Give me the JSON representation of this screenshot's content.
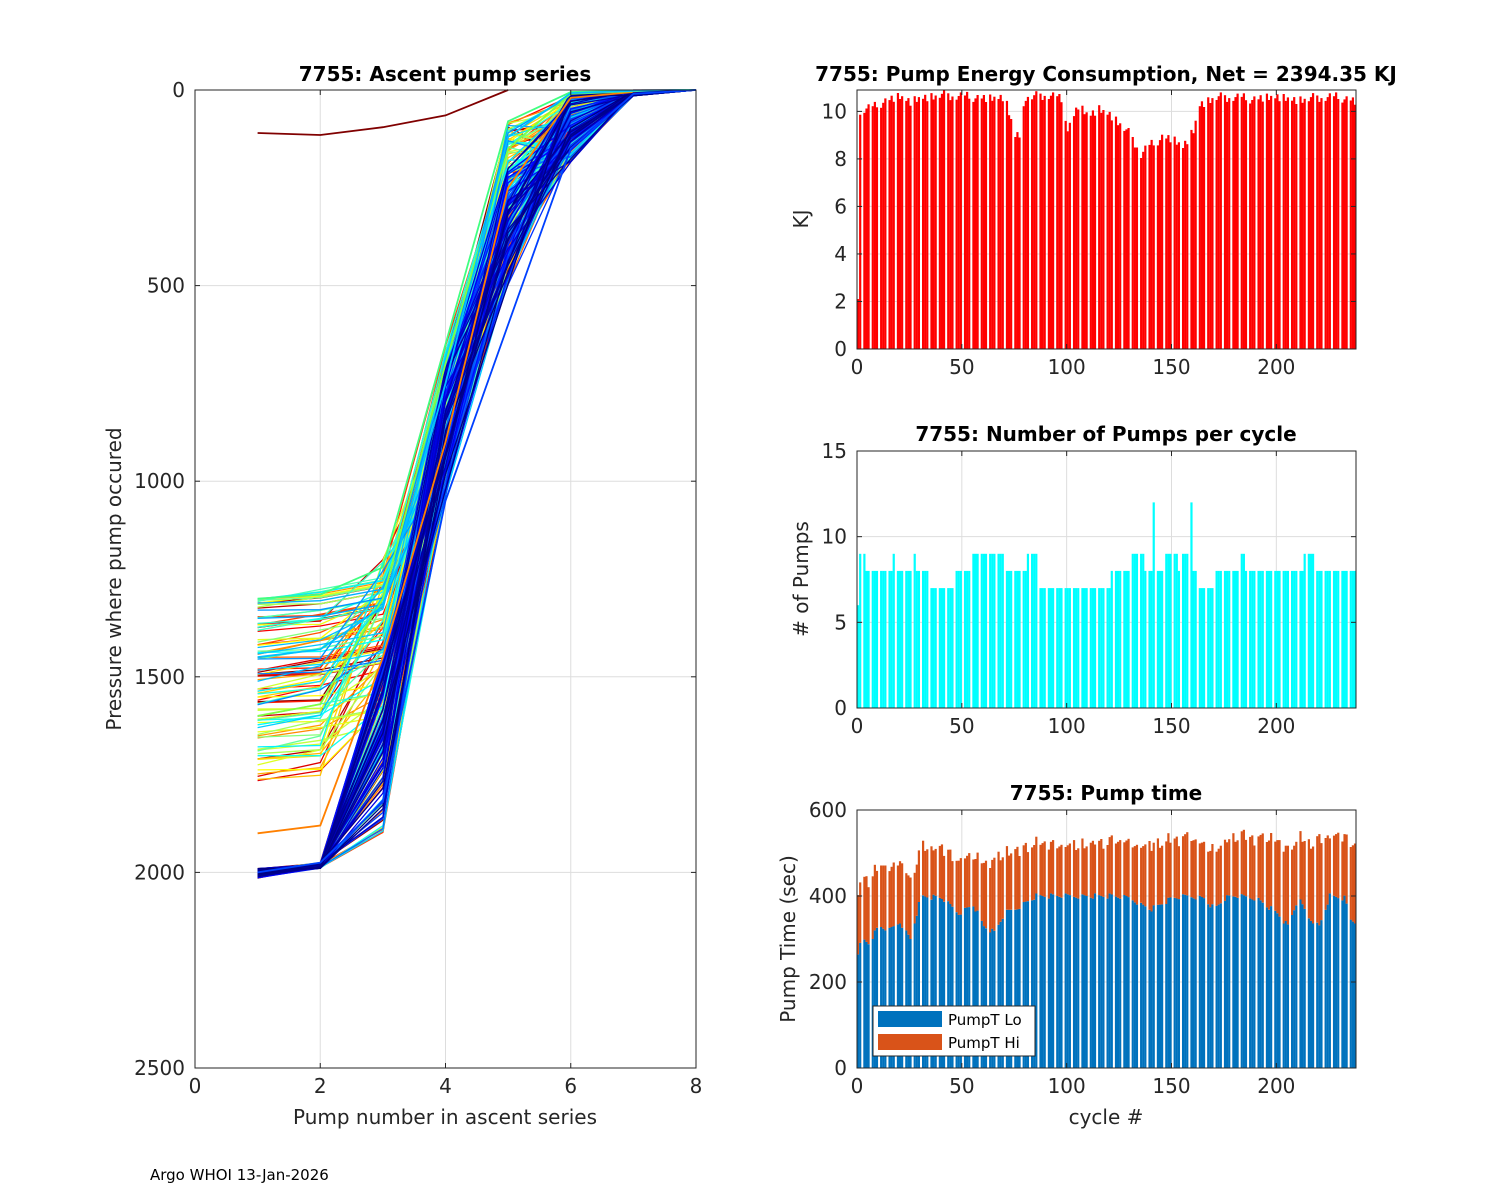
{
  "footer": "Argo WHOI 13-Jan-2026",
  "colors": {
    "energy_bar": "#ff0000",
    "pumps_bar": "#00ffff",
    "pumpt_lo": "#0072bd",
    "pumpt_hi": "#d95319",
    "grid": "#dddddd",
    "axis": "#262626"
  },
  "chart_data": [
    {
      "id": "ascent",
      "type": "line",
      "title": "7755: Ascent pump series",
      "xlabel": "Pump number in ascent series",
      "ylabel": "Pressure where pump occured",
      "xlim": [
        0,
        8
      ],
      "ylim": [
        0,
        2500
      ],
      "y_reversed": true,
      "xticks": [
        0,
        2,
        4,
        6,
        8
      ],
      "yticks": [
        0,
        500,
        1000,
        1500,
        2000,
        2500
      ],
      "grid": true,
      "colormap": "jet",
      "n_profiles": 238,
      "x": [
        1,
        2,
        3,
        4,
        5,
        6,
        7,
        8
      ],
      "representative_series": [
        {
          "name": "cycle 0",
          "values": [
            110,
            115,
            95,
            65,
            0,
            null,
            null,
            null
          ],
          "color": "#800000"
        },
        {
          "name": "early deep",
          "values": [
            1900,
            1880,
            1450,
            900,
            250,
            20,
            5,
            0
          ],
          "color": "#ff8000"
        },
        {
          "name": "mid shallow",
          "values": [
            1300,
            1290,
            1220,
            650,
            80,
            5,
            2,
            0
          ],
          "color": "#40ff80"
        },
        {
          "name": "mid",
          "values": [
            1600,
            1570,
            1300,
            700,
            150,
            10,
            3,
            0
          ],
          "color": "#80ff40"
        },
        {
          "name": "late",
          "values": [
            1450,
            1430,
            1320,
            750,
            120,
            8,
            2,
            0
          ],
          "color": "#00c0ff"
        },
        {
          "name": "late deep",
          "values": [
            2010,
            1985,
            1500,
            930,
            380,
            120,
            8,
            0
          ],
          "color": "#00008f"
        },
        {
          "name": "deep alt",
          "values": [
            2000,
            1975,
            1820,
            1050,
            600,
            150,
            10,
            0
          ],
          "color": "#0040ff"
        }
      ]
    },
    {
      "id": "energy",
      "type": "bar",
      "title": "7755: Pump Energy Consumption,  Net = 2394.35 KJ",
      "xlabel": "",
      "ylabel": "KJ",
      "xlim": [
        0,
        238
      ],
      "ylim": [
        0,
        10.9
      ],
      "xticks": [
        0,
        50,
        100,
        150,
        200
      ],
      "yticks": [
        0,
        2,
        4,
        6,
        8,
        10
      ],
      "grid": true,
      "profile_points": [
        [
          0,
          2.1
        ],
        [
          1,
          9.9
        ],
        [
          3,
          10.1
        ],
        [
          8,
          10.2
        ],
        [
          12,
          10.4
        ],
        [
          20,
          10.6
        ],
        [
          25,
          10.4
        ],
        [
          30,
          10.6
        ],
        [
          40,
          10.7
        ],
        [
          55,
          10.6
        ],
        [
          62,
          10.5
        ],
        [
          70,
          10.6
        ],
        [
          75,
          9.0
        ],
        [
          77,
          9.1
        ],
        [
          80,
          10.6
        ],
        [
          90,
          10.7
        ],
        [
          95,
          10.6
        ],
        [
          98,
          10.4
        ],
        [
          100,
          9.2
        ],
        [
          103,
          9.8
        ],
        [
          105,
          10.2
        ],
        [
          110,
          9.8
        ],
        [
          115,
          10.1
        ],
        [
          120,
          9.9
        ],
        [
          125,
          9.5
        ],
        [
          130,
          9.0
        ],
        [
          135,
          8.2
        ],
        [
          138,
          8.5
        ],
        [
          142,
          8.7
        ],
        [
          145,
          8.9
        ],
        [
          150,
          8.8
        ],
        [
          155,
          8.5
        ],
        [
          160,
          9.2
        ],
        [
          163,
          10.3
        ],
        [
          170,
          10.6
        ],
        [
          180,
          10.6
        ],
        [
          190,
          10.5
        ],
        [
          200,
          10.6
        ],
        [
          210,
          10.5
        ],
        [
          220,
          10.6
        ],
        [
          230,
          10.6
        ],
        [
          237,
          10.4
        ]
      ]
    },
    {
      "id": "pumps",
      "type": "bar",
      "title": "7755: Number of Pumps per cycle",
      "xlabel": "",
      "ylabel": "# of Pumps",
      "xlim": [
        0,
        238
      ],
      "ylim": [
        0,
        15
      ],
      "xticks": [
        0,
        50,
        100,
        150,
        200
      ],
      "yticks": [
        0,
        5,
        10,
        15
      ],
      "grid": true,
      "segments": [
        [
          0,
          0,
          6
        ],
        [
          1,
          3,
          9
        ],
        [
          4,
          16,
          8
        ],
        [
          16,
          17,
          9
        ],
        [
          17,
          26,
          8
        ],
        [
          26,
          27,
          9
        ],
        [
          27,
          33,
          8
        ],
        [
          33,
          46,
          7
        ],
        [
          46,
          53,
          8
        ],
        [
          53,
          70,
          9
        ],
        [
          70,
          80,
          8
        ],
        [
          80,
          85,
          9
        ],
        [
          85,
          105,
          7
        ],
        [
          105,
          120,
          7
        ],
        [
          120,
          130,
          8
        ],
        [
          130,
          136,
          9
        ],
        [
          136,
          140,
          8
        ],
        [
          140,
          141,
          12
        ],
        [
          141,
          145,
          8
        ],
        [
          145,
          146,
          10
        ],
        [
          146,
          152,
          9
        ],
        [
          152,
          154,
          8
        ],
        [
          154,
          158,
          9
        ],
        [
          158,
          159,
          12
        ],
        [
          159,
          162,
          8
        ],
        [
          162,
          169,
          7
        ],
        [
          169,
          182,
          8
        ],
        [
          182,
          184,
          9
        ],
        [
          184,
          212,
          8
        ],
        [
          212,
          218,
          9
        ],
        [
          218,
          238,
          8
        ]
      ]
    },
    {
      "id": "pumptime",
      "type": "bar",
      "stacked": true,
      "title": "7755: Pump time",
      "xlabel": "cycle #",
      "ylabel": "Pump Time (sec)",
      "xlim": [
        0,
        238
      ],
      "ylim": [
        0,
        600
      ],
      "xticks": [
        0,
        50,
        100,
        150,
        200
      ],
      "yticks": [
        0,
        200,
        400,
        600
      ],
      "grid": true,
      "legend": {
        "position": "bottom-left",
        "entries": [
          "PumpT Lo",
          "PumpT Hi"
        ]
      },
      "lo_profile": [
        [
          0,
          270
        ],
        [
          2,
          300
        ],
        [
          5,
          290
        ],
        [
          10,
          330
        ],
        [
          15,
          320
        ],
        [
          20,
          340
        ],
        [
          25,
          300
        ],
        [
          30,
          400
        ],
        [
          40,
          395
        ],
        [
          48,
          360
        ],
        [
          55,
          380
        ],
        [
          60,
          330
        ],
        [
          65,
          315
        ],
        [
          70,
          360
        ],
        [
          75,
          370
        ],
        [
          85,
          400
        ],
        [
          95,
          400
        ],
        [
          105,
          400
        ],
        [
          120,
          400
        ],
        [
          130,
          395
        ],
        [
          135,
          380
        ],
        [
          140,
          370
        ],
        [
          150,
          395
        ],
        [
          158,
          400
        ],
        [
          165,
          395
        ],
        [
          170,
          370
        ],
        [
          175,
          395
        ],
        [
          180,
          400
        ],
        [
          190,
          395
        ],
        [
          200,
          360
        ],
        [
          205,
          330
        ],
        [
          210,
          395
        ],
        [
          215,
          350
        ],
        [
          220,
          330
        ],
        [
          225,
          400
        ],
        [
          232,
          395
        ],
        [
          235,
          345
        ],
        [
          237,
          340
        ]
      ],
      "hi_profile": [
        [
          0,
          150
        ],
        [
          3,
          140
        ],
        [
          10,
          145
        ],
        [
          15,
          135
        ],
        [
          20,
          145
        ],
        [
          25,
          140
        ],
        [
          30,
          115
        ],
        [
          40,
          115
        ],
        [
          48,
          120
        ],
        [
          55,
          115
        ],
        [
          60,
          150
        ],
        [
          65,
          170
        ],
        [
          70,
          140
        ],
        [
          75,
          135
        ],
        [
          85,
          120
        ],
        [
          95,
          120
        ],
        [
          105,
          120
        ],
        [
          120,
          125
        ],
        [
          130,
          130
        ],
        [
          135,
          140
        ],
        [
          140,
          150
        ],
        [
          150,
          135
        ],
        [
          158,
          135
        ],
        [
          165,
          125
        ],
        [
          170,
          140
        ],
        [
          175,
          130
        ],
        [
          180,
          140
        ],
        [
          190,
          140
        ],
        [
          200,
          170
        ],
        [
          205,
          180
        ],
        [
          210,
          140
        ],
        [
          215,
          175
        ],
        [
          220,
          200
        ],
        [
          225,
          140
        ],
        [
          232,
          140
        ],
        [
          235,
          175
        ],
        [
          237,
          180
        ]
      ]
    }
  ]
}
